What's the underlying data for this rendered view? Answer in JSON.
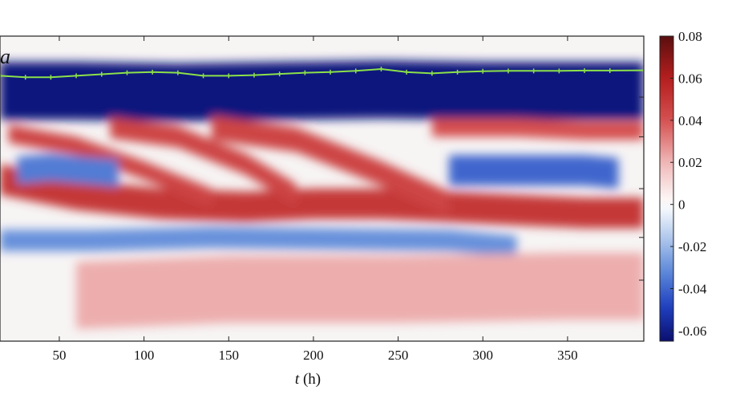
{
  "chart_data": {
    "type": "heatmap",
    "panel_label": "a",
    "xlabel_var": "t",
    "xlabel_unit": " (h)",
    "x_ticks": [
      50,
      100,
      150,
      200,
      250,
      300,
      350
    ],
    "x_tick_labels": [
      "50",
      "100",
      "150",
      "200",
      "250",
      "300",
      "350"
    ],
    "xlim": [
      15,
      395
    ],
    "colorbar": {
      "range": [
        -0.065,
        0.08
      ],
      "ticks": [
        0.08,
        0.06,
        0.04,
        0.02,
        0,
        -0.02,
        -0.04,
        -0.06
      ],
      "tick_labels": [
        "0.08",
        "0.06",
        "0.04",
        "0.02",
        "0",
        "-0.02",
        "-0.04",
        "-0.06"
      ],
      "colormap": [
        "#0b0f6e",
        "#1f3fc0",
        "#5b87d8",
        "#aec7ec",
        "#ffffff",
        "#f0b7b7",
        "#d55050",
        "#b51e1e",
        "#5a0e0e"
      ]
    },
    "tracked_line": {
      "color": "#8be04a",
      "x": [
        15,
        30,
        45,
        60,
        75,
        90,
        105,
        120,
        135,
        150,
        165,
        180,
        195,
        210,
        225,
        240,
        255,
        270,
        285,
        300,
        315,
        330,
        345,
        360,
        375,
        395
      ],
      "y_frac": [
        0.13,
        0.135,
        0.135,
        0.13,
        0.125,
        0.12,
        0.118,
        0.12,
        0.13,
        0.13,
        0.128,
        0.124,
        0.12,
        0.118,
        0.114,
        0.108,
        0.118,
        0.122,
        0.118,
        0.115,
        0.114,
        0.114,
        0.114,
        0.113,
        0.113,
        0.112
      ]
    },
    "bands": [
      {
        "name": "upper-dark-blue-band",
        "value": -0.062,
        "x": [
          15,
          60,
          120,
          180,
          240,
          300,
          360,
          395
        ],
        "y_center_frac": [
          0.18,
          0.18,
          0.185,
          0.18,
          0.175,
          0.18,
          0.18,
          0.18
        ],
        "thickness_frac": 0.19
      },
      {
        "name": "red-wave-1",
        "value": 0.05,
        "x": [
          15,
          60,
          110,
          160,
          200,
          240,
          280,
          320,
          360,
          395
        ],
        "y_center_frac": [
          0.47,
          0.52,
          0.55,
          0.56,
          0.55,
          0.55,
          0.56,
          0.57,
          0.58,
          0.58
        ],
        "thickness_frac": 0.1
      },
      {
        "name": "red-diagonal-1",
        "value": 0.045,
        "x": [
          20,
          60,
          100,
          140
        ],
        "y_center_frac": [
          0.32,
          0.36,
          0.44,
          0.53
        ],
        "thickness_frac": 0.06
      },
      {
        "name": "red-diagonal-2",
        "value": 0.045,
        "x": [
          80,
          120,
          160,
          190
        ],
        "y_center_frac": [
          0.3,
          0.33,
          0.42,
          0.52
        ],
        "thickness_frac": 0.07
      },
      {
        "name": "red-diagonal-3",
        "value": 0.045,
        "x": [
          140,
          190,
          240,
          280
        ],
        "y_center_frac": [
          0.3,
          0.34,
          0.45,
          0.55
        ],
        "thickness_frac": 0.08
      },
      {
        "name": "red-upper-right",
        "value": 0.04,
        "x": [
          270,
          320,
          360,
          395
        ],
        "y_center_frac": [
          0.3,
          0.3,
          0.31,
          0.31
        ],
        "thickness_frac": 0.06
      },
      {
        "name": "blue-pocket-left",
        "value": -0.035,
        "x": [
          25,
          45,
          65,
          85
        ],
        "y_center_frac": [
          0.44,
          0.43,
          0.44,
          0.45
        ],
        "thickness_frac": 0.09
      },
      {
        "name": "blue-pocket-right",
        "value": -0.04,
        "x": [
          280,
          320,
          360,
          380
        ],
        "y_center_frac": [
          0.44,
          0.44,
          0.44,
          0.45
        ],
        "thickness_frac": 0.1
      },
      {
        "name": "blue-lower-band",
        "value": -0.03,
        "x": [
          15,
          70,
          140,
          210,
          280,
          320
        ],
        "y_center_frac": [
          0.67,
          0.67,
          0.66,
          0.665,
          0.67,
          0.69
        ],
        "thickness_frac": 0.07
      },
      {
        "name": "pale-red-lower-field",
        "value": 0.022,
        "x": [
          60,
          150,
          250,
          350,
          395
        ],
        "y_center_frac": [
          0.85,
          0.83,
          0.83,
          0.82,
          0.82
        ],
        "thickness_frac": 0.22
      }
    ]
  }
}
